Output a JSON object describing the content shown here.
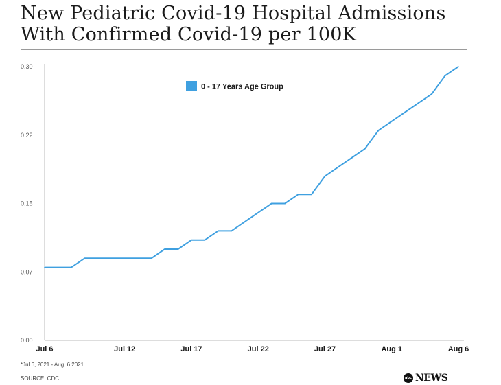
{
  "header": {
    "title_line1": "New Pediatric Covid-19 Hospital Admissions",
    "title_line2": "With Confirmed Covid-19 per 100K"
  },
  "footer": {
    "footnote": "*Jul 6, 2021 - Aug, 6 2021",
    "source": "SOURCE: CDC",
    "logo_mark": "abc",
    "logo_text": "NEWS"
  },
  "colors": {
    "series": "#3fa0e0",
    "axis": "#bbbbbb",
    "text": "#1a1a1a"
  },
  "chart_data": {
    "type": "line",
    "title": "New Pediatric Covid-19 Hospital Admissions With Confirmed Covid-19 per 100K",
    "xlabel": "",
    "ylabel": "",
    "ylim": [
      0,
      0.3
    ],
    "yticks": [
      0,
      0.075,
      0.15,
      0.225,
      0.3
    ],
    "ytick_labels": [
      "0.00",
      "0.07",
      "0.15",
      "0.22",
      "0.30"
    ],
    "xticks": [
      0,
      6,
      11,
      16,
      21,
      26,
      31
    ],
    "xtick_labels": [
      "Jul 6",
      "Jul 12",
      "Jul 17",
      "Jul 22",
      "Jul 27",
      "Aug 1",
      "Aug 6"
    ],
    "grid": false,
    "legend_position": "top-center",
    "x": [
      "Jul 6",
      "Jul 7",
      "Jul 8",
      "Jul 9",
      "Jul 10",
      "Jul 11",
      "Jul 12",
      "Jul 13",
      "Jul 14",
      "Jul 15",
      "Jul 16",
      "Jul 17",
      "Jul 18",
      "Jul 19",
      "Jul 20",
      "Jul 21",
      "Jul 22",
      "Jul 23",
      "Jul 24",
      "Jul 25",
      "Jul 26",
      "Jul 27",
      "Jul 28",
      "Jul 29",
      "Jul 30",
      "Jul 31",
      "Aug 1",
      "Aug 2",
      "Aug 3",
      "Aug 4",
      "Aug 5",
      "Aug 6"
    ],
    "series": [
      {
        "name": "0 - 17 Years Age Group",
        "values": [
          0.08,
          0.08,
          0.08,
          0.09,
          0.09,
          0.09,
          0.09,
          0.09,
          0.09,
          0.1,
          0.1,
          0.11,
          0.11,
          0.12,
          0.12,
          0.13,
          0.14,
          0.15,
          0.15,
          0.16,
          0.16,
          0.18,
          0.19,
          0.2,
          0.21,
          0.23,
          0.24,
          0.25,
          0.26,
          0.27,
          0.29,
          0.3
        ]
      }
    ]
  }
}
